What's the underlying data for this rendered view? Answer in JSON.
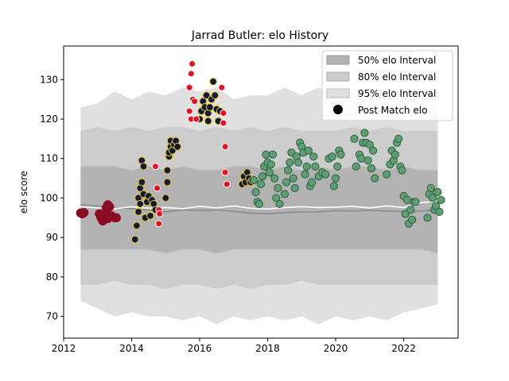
{
  "chart_data": {
    "type": "scatter",
    "title": "Jarrad Butler: elo History",
    "xlabel": "",
    "ylabel": "elo score",
    "xlim": [
      2012.0,
      2023.6
    ],
    "ylim": [
      64.5,
      138.5
    ],
    "xticks": [
      2012,
      2014,
      2016,
      2018,
      2020,
      2022
    ],
    "yticks": [
      70,
      80,
      90,
      100,
      110,
      120,
      130
    ],
    "legend": {
      "placement": "top-right",
      "entries": [
        "50% elo Interval",
        "80% elo Interval",
        "95% elo Interval",
        "Post Match elo"
      ]
    },
    "colors": {
      "band95": "#e0e0e0",
      "band80": "#cccccc",
      "band50": "#b3b3b3",
      "median_line": "#888888",
      "mean_line": "#ffffff",
      "maroon": "#8b0a24",
      "navy": "#0d1b3e",
      "gold": "#f5c518",
      "red": "#e8101e",
      "green": "#5d9e72"
    },
    "bands": {
      "x": [
        2012.5,
        2013.0,
        2013.5,
        2014.0,
        2014.5,
        2015.0,
        2015.5,
        2016.0,
        2016.5,
        2017.0,
        2017.5,
        2018.0,
        2018.5,
        2019.0,
        2019.5,
        2020.0,
        2020.5,
        2021.0,
        2021.5,
        2022.0,
        2022.5,
        2023.0
      ],
      "p95_hi": [
        123,
        124,
        127,
        125,
        127,
        126,
        128,
        127,
        128,
        125,
        126,
        126,
        128,
        126,
        128,
        126,
        128,
        126,
        128,
        126,
        124,
        123
      ],
      "p95_lo": [
        74,
        72,
        70,
        71,
        70,
        70,
        69,
        70,
        68,
        70,
        69,
        70,
        69,
        70,
        68,
        70,
        69,
        70,
        69,
        71,
        72,
        73
      ],
      "p80_hi": [
        117,
        118,
        117,
        118,
        117,
        118,
        118,
        117,
        118,
        117,
        118,
        117,
        118,
        117,
        117,
        117,
        118,
        117,
        118,
        117,
        117,
        117
      ],
      "p80_lo": [
        78,
        78,
        79,
        78,
        78,
        77,
        78,
        78,
        77,
        78,
        77,
        78,
        78,
        79,
        78,
        78,
        78,
        78,
        78,
        78,
        78,
        78
      ],
      "p50_hi": [
        108,
        108,
        108,
        107,
        108,
        107,
        108,
        107,
        107,
        108,
        108,
        107,
        108,
        107,
        108,
        107,
        108,
        108,
        107,
        108,
        107,
        107
      ],
      "p50_lo": [
        87,
        87,
        87,
        87,
        87,
        86,
        87,
        87,
        86,
        87,
        87,
        87,
        87,
        87,
        87,
        87,
        87,
        87,
        87,
        87,
        87,
        86
      ],
      "median": [
        98.3,
        98.0,
        97.5,
        97.3,
        97.0,
        96.5,
        97.0,
        96.8,
        97.0,
        96.6,
        96.2,
        96.0,
        96.3,
        96.5,
        96.5,
        96.8,
        96.7,
        96.9,
        96.7,
        96.6,
        96.7,
        97.0
      ],
      "mean": [
        97.8,
        97.5,
        97.3,
        97.8,
        97.4,
        97.6,
        97.3,
        97.9,
        97.5,
        98.0,
        97.4,
        97.2,
        97.6,
        97.8,
        97.6,
        97.7,
        97.9,
        97.5,
        98.0,
        97.6,
        98.8,
        99.2
      ]
    },
    "series": [
      {
        "style": "maroon",
        "points": [
          [
            2012.5,
            96.2
          ],
          [
            2012.55,
            96.0
          ],
          [
            2012.6,
            96.3
          ],
          [
            2013.05,
            96.0
          ],
          [
            2013.1,
            95.0
          ],
          [
            2013.15,
            94.2
          ],
          [
            2013.2,
            94.5
          ],
          [
            2013.25,
            97.5
          ],
          [
            2013.3,
            98.3
          ],
          [
            2013.35,
            97.8
          ],
          [
            2013.25,
            96.0
          ],
          [
            2013.3,
            94.8
          ],
          [
            2013.4,
            95.5
          ],
          [
            2013.5,
            95.0
          ],
          [
            2013.55,
            95.0
          ]
        ]
      },
      {
        "style": "navy",
        "points": [
          [
            2014.1,
            89.5
          ],
          [
            2014.15,
            93.0
          ],
          [
            2014.2,
            100.0
          ],
          [
            2014.25,
            102.5
          ],
          [
            2014.3,
            104.0
          ],
          [
            2014.3,
            109.5
          ],
          [
            2014.35,
            108.0
          ],
          [
            2014.35,
            101.0
          ],
          [
            2014.4,
            95.0
          ],
          [
            2014.45,
            99.0
          ],
          [
            2014.5,
            100.5
          ],
          [
            2014.55,
            95.5
          ],
          [
            2014.6,
            99.5
          ],
          [
            2014.65,
            98.5
          ],
          [
            2014.7,
            97.0
          ],
          [
            2014.2,
            96.5
          ],
          [
            2014.25,
            98.5
          ],
          [
            2015.0,
            100.0
          ],
          [
            2015.05,
            104.0
          ],
          [
            2015.05,
            107.0
          ],
          [
            2015.1,
            110.5
          ],
          [
            2015.1,
            111.5
          ],
          [
            2015.15,
            113.0
          ],
          [
            2015.15,
            114.5
          ],
          [
            2015.2,
            112.0
          ],
          [
            2015.25,
            113.5
          ],
          [
            2015.3,
            114.5
          ],
          [
            2015.35,
            113.0
          ],
          [
            2016.0,
            120.0
          ],
          [
            2016.05,
            122.0
          ],
          [
            2016.1,
            124.5
          ],
          [
            2016.15,
            123.0
          ],
          [
            2016.2,
            126.0
          ],
          [
            2016.25,
            121.5
          ],
          [
            2016.25,
            119.5
          ],
          [
            2016.3,
            123.0
          ],
          [
            2016.35,
            125.0
          ],
          [
            2016.4,
            129.5
          ],
          [
            2016.45,
            126.0
          ],
          [
            2016.5,
            122.5
          ],
          [
            2016.55,
            119.5
          ],
          [
            2016.6,
            122.0
          ],
          [
            2017.25,
            103.5
          ],
          [
            2017.3,
            105.5
          ],
          [
            2017.35,
            104.0
          ],
          [
            2017.4,
            106.5
          ],
          [
            2017.45,
            105.0
          ],
          [
            2017.5,
            104.0
          ],
          [
            2017.55,
            104.5
          ]
        ]
      },
      {
        "style": "red",
        "points": [
          [
            2014.7,
            108.0
          ],
          [
            2014.75,
            102.5
          ],
          [
            2014.8,
            97.0
          ],
          [
            2014.82,
            96.0
          ],
          [
            2014.8,
            93.5
          ],
          [
            2015.7,
            128.0
          ],
          [
            2015.7,
            122.0
          ],
          [
            2015.75,
            131.5
          ],
          [
            2015.78,
            134.0
          ],
          [
            2015.8,
            125.0
          ],
          [
            2015.85,
            124.5
          ],
          [
            2015.75,
            120.0
          ],
          [
            2015.9,
            120.0
          ],
          [
            2016.65,
            128.0
          ],
          [
            2016.7,
            121.5
          ],
          [
            2016.7,
            119.0
          ],
          [
            2016.75,
            113.0
          ],
          [
            2016.75,
            106.5
          ],
          [
            2016.8,
            103.5
          ]
        ]
      },
      {
        "style": "green",
        "points": [
          [
            2017.6,
            104.5
          ],
          [
            2017.65,
            101.5
          ],
          [
            2017.7,
            99.0
          ],
          [
            2017.75,
            98.5
          ],
          [
            2017.8,
            103.5
          ],
          [
            2017.85,
            105.5
          ],
          [
            2017.9,
            108.0
          ],
          [
            2017.95,
            111.0
          ],
          [
            2018.0,
            109.0
          ],
          [
            2018.05,
            106.5
          ],
          [
            2018.1,
            108.5
          ],
          [
            2018.15,
            111.0
          ],
          [
            2018.2,
            105.0
          ],
          [
            2018.25,
            100.0
          ],
          [
            2018.3,
            102.5
          ],
          [
            2018.35,
            98.5
          ],
          [
            2018.5,
            101.0
          ],
          [
            2018.55,
            104.0
          ],
          [
            2018.6,
            107.0
          ],
          [
            2018.65,
            109.0
          ],
          [
            2018.7,
            111.5
          ],
          [
            2018.75,
            105.0
          ],
          [
            2018.8,
            102.5
          ],
          [
            2018.85,
            110.5
          ],
          [
            2018.9,
            109.0
          ],
          [
            2018.95,
            114.0
          ],
          [
            2019.0,
            113.0
          ],
          [
            2019.05,
            111.5
          ],
          [
            2019.1,
            106.0
          ],
          [
            2019.15,
            108.0
          ],
          [
            2019.2,
            112.0
          ],
          [
            2019.25,
            103.0
          ],
          [
            2019.3,
            104.0
          ],
          [
            2019.35,
            110.5
          ],
          [
            2019.4,
            108.0
          ],
          [
            2019.5,
            105.5
          ],
          [
            2019.6,
            106.5
          ],
          [
            2019.7,
            106.0
          ],
          [
            2019.8,
            110.0
          ],
          [
            2019.9,
            110.5
          ],
          [
            2019.95,
            103.0
          ],
          [
            2020.0,
            105.0
          ],
          [
            2020.05,
            108.0
          ],
          [
            2020.1,
            112.0
          ],
          [
            2020.15,
            111.0
          ],
          [
            2020.55,
            115.0
          ],
          [
            2020.6,
            108.0
          ],
          [
            2020.7,
            111.0
          ],
          [
            2020.75,
            110.0
          ],
          [
            2020.8,
            114.0
          ],
          [
            2020.85,
            116.5
          ],
          [
            2020.9,
            114.0
          ],
          [
            2020.95,
            109.5
          ],
          [
            2021.0,
            113.5
          ],
          [
            2021.05,
            107.5
          ],
          [
            2021.1,
            112.0
          ],
          [
            2021.15,
            105.0
          ],
          [
            2021.5,
            106.0
          ],
          [
            2021.6,
            108.5
          ],
          [
            2021.65,
            112.0
          ],
          [
            2021.7,
            109.5
          ],
          [
            2021.75,
            111.0
          ],
          [
            2021.8,
            114.0
          ],
          [
            2021.85,
            115.0
          ],
          [
            2021.9,
            108.0
          ],
          [
            2021.95,
            107.0
          ],
          [
            2022.0,
            100.5
          ],
          [
            2022.05,
            96.0
          ],
          [
            2022.1,
            99.5
          ],
          [
            2022.15,
            93.5
          ],
          [
            2022.2,
            97.0
          ],
          [
            2022.25,
            94.5
          ],
          [
            2022.3,
            99.0
          ],
          [
            2022.35,
            99.0
          ],
          [
            2022.7,
            95.0
          ],
          [
            2022.75,
            101.0
          ],
          [
            2022.8,
            102.5
          ],
          [
            2022.85,
            100.0
          ],
          [
            2022.9,
            97.0
          ],
          [
            2022.95,
            98.0
          ],
          [
            2023.0,
            101.5
          ],
          [
            2023.05,
            96.5
          ],
          [
            2023.1,
            99.5
          ]
        ]
      }
    ]
  }
}
